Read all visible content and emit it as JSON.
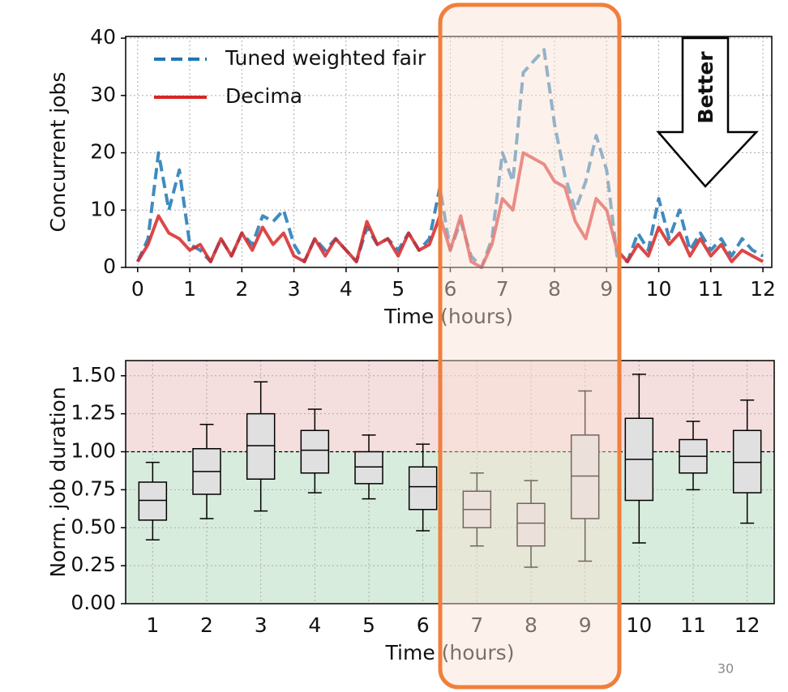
{
  "chart_data": [
    {
      "type": "line",
      "xlabel": "Time (hours)",
      "ylabel": "Concurrent jobs",
      "x": [
        0,
        0.2,
        0.4,
        0.6,
        0.8,
        1,
        1.2,
        1.4,
        1.6,
        1.8,
        2,
        2.2,
        2.4,
        2.6,
        2.8,
        3,
        3.2,
        3.4,
        3.6,
        3.8,
        4,
        4.2,
        4.4,
        4.6,
        4.8,
        5,
        5.2,
        5.4,
        5.6,
        5.8,
        6,
        6.2,
        6.4,
        6.6,
        6.8,
        7,
        7.2,
        7.4,
        7.6,
        7.8,
        8,
        8.2,
        8.4,
        8.6,
        8.8,
        9,
        9.2,
        9.4,
        9.6,
        9.8,
        10,
        10.2,
        10.4,
        10.6,
        10.8,
        11,
        11.2,
        11.4,
        11.6,
        11.8,
        12
      ],
      "series": [
        {
          "name": "Tuned weighted fair",
          "color": "#1f77b4",
          "line_style": "dashed",
          "values": [
            1,
            5,
            20,
            10,
            17,
            4,
            3,
            1,
            5,
            2,
            6,
            4,
            9,
            8,
            10,
            4,
            1,
            5,
            3,
            5,
            3,
            1,
            7,
            4,
            5,
            3,
            6,
            3,
            5,
            14,
            3,
            8,
            2,
            0,
            5,
            20,
            15,
            34,
            36,
            38,
            25,
            16,
            10,
            15,
            23,
            17,
            2,
            1,
            6,
            3,
            12,
            5,
            10,
            3,
            6,
            3,
            5,
            2,
            5,
            3,
            2
          ]
        },
        {
          "name": "Decima",
          "color": "#d62728",
          "line_style": "solid",
          "values": [
            1,
            4,
            9,
            6,
            5,
            3,
            4,
            1,
            5,
            2,
            6,
            3,
            7,
            4,
            6,
            2,
            1,
            5,
            2,
            5,
            3,
            1,
            8,
            4,
            5,
            2,
            6,
            3,
            4,
            9,
            3,
            9,
            1,
            0,
            4,
            12,
            10,
            20,
            19,
            18,
            15,
            14,
            8,
            5,
            12,
            10,
            3,
            1,
            4,
            2,
            7,
            4,
            6,
            2,
            5,
            2,
            4,
            1,
            3,
            2,
            1
          ]
        }
      ],
      "xlim": [
        -0.23,
        12.17
      ],
      "xticks": [
        0,
        1,
        2,
        3,
        4,
        5,
        6,
        7,
        8,
        9,
        10,
        11,
        12
      ],
      "ylim": [
        0,
        40.3
      ],
      "yticks": [
        0,
        10,
        20,
        30,
        40
      ],
      "grid": true,
      "legend": "upper left",
      "annotation": "Better"
    },
    {
      "type": "box",
      "xlabel": "Time (hours)",
      "ylabel": "Norm. job duration",
      "categories": [
        "1",
        "2",
        "3",
        "4",
        "5",
        "6",
        "7",
        "8",
        "9",
        "10",
        "11",
        "12"
      ],
      "whisker_low": [
        0.42,
        0.56,
        0.61,
        0.73,
        0.69,
        0.48,
        0.38,
        0.24,
        0.28,
        0.4,
        0.75,
        0.53
      ],
      "q1": [
        0.55,
        0.72,
        0.82,
        0.86,
        0.79,
        0.62,
        0.5,
        0.38,
        0.56,
        0.68,
        0.86,
        0.73
      ],
      "median": [
        0.68,
        0.87,
        1.04,
        1.01,
        0.9,
        0.77,
        0.62,
        0.53,
        0.84,
        0.95,
        0.97,
        0.93
      ],
      "q3": [
        0.8,
        1.02,
        1.25,
        1.14,
        1.0,
        0.9,
        0.74,
        0.66,
        1.11,
        1.22,
        1.08,
        1.14
      ],
      "whisker_high": [
        0.93,
        1.18,
        1.46,
        1.28,
        1.11,
        1.05,
        0.86,
        0.81,
        1.4,
        1.51,
        1.2,
        1.34
      ],
      "color": "#e0e0e0",
      "ylim": [
        0,
        1.6
      ],
      "yticks": [
        {
          "value": 0,
          "label": "0.00"
        },
        {
          "value": 0.25,
          "label": "0.25"
        },
        {
          "value": 0.5,
          "label": "0.50"
        },
        {
          "value": 0.75,
          "label": "0.75"
        },
        {
          "value": 1,
          "label": "1.00"
        },
        {
          "value": 1.25,
          "label": "1.25"
        },
        {
          "value": 1.5,
          "label": "1.50"
        }
      ],
      "grid": true,
      "reference_line": 1,
      "above_color": "#f5dede",
      "below_color": "#d8ecdd"
    }
  ],
  "page_number": "30"
}
